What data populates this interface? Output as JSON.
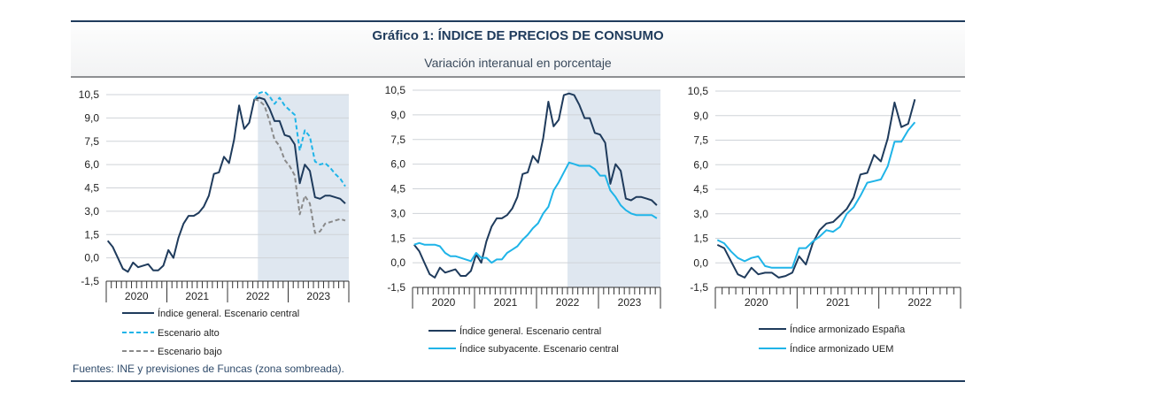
{
  "header": {
    "title": "Gráfico 1: ÍNDICE DE PRECIOS DE CONSUMO",
    "subtitle": "Variación interanual en porcentaje"
  },
  "footer": {
    "source": "Fuentes: INE y previsiones de Funcas (zona sombreada)."
  },
  "colors": {
    "navy": "#1f3b5c",
    "cyan": "#1fb4e8",
    "grey": "#8a8a8a",
    "shade": "#dfe7f0",
    "grid": "#cfd3d8"
  },
  "chart_data": [
    {
      "type": "line",
      "yticks": [
        "10,5",
        "9,0",
        "7,5",
        "6,0",
        "4,5",
        "3,0",
        "1,5",
        "0,0",
        "-1,5"
      ],
      "ylim": [
        -1.5,
        10.5
      ],
      "years": [
        "2020",
        "2021",
        "2022",
        "2023"
      ],
      "months_total": 48,
      "shaded_from_month": 30,
      "series": [
        {
          "name": "Índice general. Escenario central",
          "color": "#1f3b5c",
          "dash": false,
          "start": 0,
          "values": [
            1.1,
            0.7,
            0.0,
            -0.7,
            -0.9,
            -0.3,
            -0.6,
            -0.5,
            -0.4,
            -0.8,
            -0.8,
            -0.5,
            0.5,
            0.0,
            1.3,
            2.2,
            2.7,
            2.7,
            2.9,
            3.3,
            4.0,
            5.4,
            5.5,
            6.5,
            6.1,
            7.6,
            9.8,
            8.3,
            8.7,
            10.2,
            10.3,
            10.2,
            9.6,
            8.8,
            8.8,
            7.9,
            7.8,
            7.3,
            4.8,
            6.0,
            5.6,
            3.9,
            3.8,
            4.0,
            4.0,
            3.9,
            3.8,
            3.5
          ]
        },
        {
          "name": "Escenario alto",
          "color": "#1fb4e8",
          "dash": true,
          "start": 29,
          "values": [
            10.2,
            10.6,
            10.7,
            10.4,
            9.9,
            10.3,
            9.8,
            9.5,
            9.2,
            6.9,
            8.2,
            7.8,
            6.2,
            6.0,
            6.1,
            5.8,
            5.4,
            5.1,
            4.6
          ]
        },
        {
          "name": "Escenario bajo",
          "color": "#8a8a8a",
          "dash": true,
          "start": 29,
          "values": [
            10.2,
            10.1,
            9.8,
            8.8,
            7.6,
            7.2,
            6.3,
            5.9,
            5.3,
            2.8,
            4.0,
            3.5,
            1.6,
            1.7,
            2.2,
            2.3,
            2.4,
            2.5,
            2.4
          ]
        }
      ]
    },
    {
      "type": "line",
      "yticks": [
        "10,5",
        "9,0",
        "7,5",
        "6,0",
        "4,5",
        "3,0",
        "1,5",
        "0,0",
        "-1,5"
      ],
      "ylim": [
        -1.5,
        10.5
      ],
      "years": [
        "2020",
        "2021",
        "2022",
        "2023"
      ],
      "months_total": 48,
      "shaded_from_month": 30,
      "series": [
        {
          "name": "Índice general. Escenario central",
          "color": "#1f3b5c",
          "dash": false,
          "start": 0,
          "values": [
            1.1,
            0.7,
            0.0,
            -0.7,
            -0.9,
            -0.3,
            -0.6,
            -0.5,
            -0.4,
            -0.8,
            -0.8,
            -0.5,
            0.5,
            0.0,
            1.3,
            2.2,
            2.7,
            2.7,
            2.9,
            3.3,
            4.0,
            5.4,
            5.5,
            6.5,
            6.1,
            7.6,
            9.8,
            8.3,
            8.7,
            10.2,
            10.3,
            10.2,
            9.6,
            8.8,
            8.8,
            7.9,
            7.8,
            7.3,
            4.8,
            6.0,
            5.6,
            3.9,
            3.8,
            4.0,
            4.0,
            3.9,
            3.8,
            3.5
          ]
        },
        {
          "name": "Índice subyacente. Escenario central",
          "color": "#1fb4e8",
          "dash": false,
          "start": 0,
          "values": [
            1.1,
            1.2,
            1.1,
            1.1,
            1.1,
            1.0,
            0.6,
            0.4,
            0.4,
            0.3,
            0.2,
            0.1,
            0.6,
            0.3,
            0.3,
            0.0,
            0.2,
            0.2,
            0.6,
            0.8,
            1.0,
            1.4,
            1.7,
            2.1,
            2.4,
            3.0,
            3.4,
            4.4,
            4.9,
            5.5,
            6.1,
            6.0,
            5.9,
            5.9,
            5.9,
            5.7,
            5.3,
            5.3,
            4.4,
            4.0,
            3.5,
            3.2,
            3.0,
            2.9,
            2.9,
            2.9,
            2.9,
            2.7
          ]
        }
      ]
    },
    {
      "type": "line",
      "yticks": [
        "10,5",
        "9,0",
        "7,5",
        "6,0",
        "4,5",
        "3,0",
        "1,5",
        "0,0",
        "-1,5"
      ],
      "ylim": [
        -1.5,
        10.5
      ],
      "years": [
        "2020",
        "2021",
        "2022"
      ],
      "months_total": 36,
      "shaded_from_month": null,
      "series": [
        {
          "name": "Índice armonizado España",
          "color": "#1f3b5c",
          "dash": false,
          "start": 0,
          "values": [
            1.1,
            0.9,
            0.1,
            -0.7,
            -0.9,
            -0.3,
            -0.7,
            -0.6,
            -0.6,
            -0.9,
            -0.8,
            -0.6,
            0.4,
            -0.1,
            1.2,
            2.0,
            2.4,
            2.5,
            2.9,
            3.3,
            4.0,
            5.4,
            5.5,
            6.6,
            6.2,
            7.6,
            9.8,
            8.3,
            8.5,
            10.0
          ]
        },
        {
          "name": "Índice armonizado UEM",
          "color": "#1fb4e8",
          "dash": false,
          "start": 0,
          "values": [
            1.4,
            1.2,
            0.7,
            0.3,
            0.1,
            0.3,
            0.4,
            -0.2,
            -0.3,
            -0.3,
            -0.3,
            -0.3,
            0.9,
            0.9,
            1.3,
            1.6,
            2.0,
            1.9,
            2.2,
            3.0,
            3.4,
            4.1,
            4.9,
            5.0,
            5.1,
            5.9,
            7.4,
            7.4,
            8.1,
            8.6
          ]
        }
      ]
    }
  ]
}
